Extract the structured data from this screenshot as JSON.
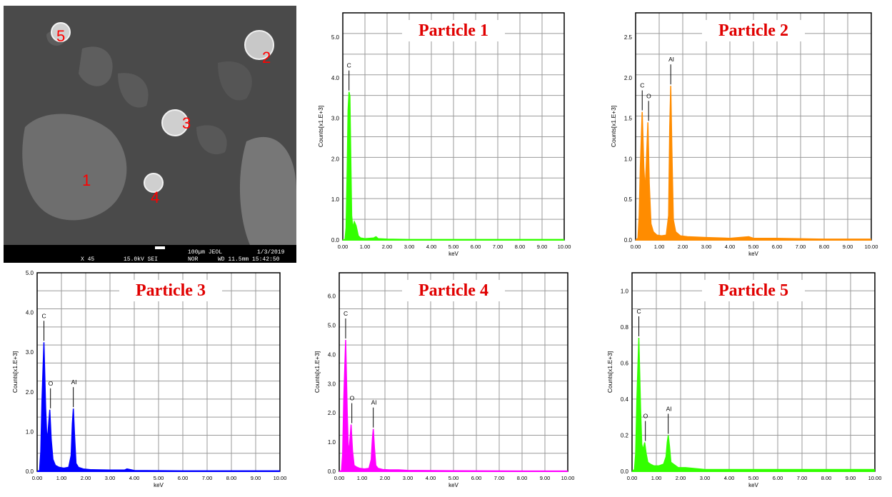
{
  "sem": {
    "particle_labels": [
      "1",
      "2",
      "3",
      "4",
      "5"
    ],
    "scalebar_text": "100µm JEOL",
    "date": "1/3/2019",
    "magnification": "X 45",
    "voltage": "15.0kV SEI",
    "mode": "NOR",
    "wd_time": "WD 11.5mm 15:42:50"
  },
  "chart_data": [
    {
      "type": "line",
      "title": "Particle 1",
      "xlabel": "keV",
      "ylabel": "Counts[x1.E+3]",
      "xlim": [
        0,
        10
      ],
      "ylim": [
        0,
        5.6
      ],
      "xticks": [
        "0.00",
        "1.00",
        "2.00",
        "3.00",
        "4.00",
        "5.00",
        "6.00",
        "7.00",
        "8.00",
        "9.00",
        "10.00"
      ],
      "yticks": [
        "0.0",
        "1.0",
        "2.0",
        "3.0",
        "4.0",
        "5.0"
      ],
      "color": "#33ff00",
      "peaks": [
        {
          "label": "C",
          "x": 0.28,
          "y": 3.65
        }
      ],
      "x": [
        0.0,
        0.1,
        0.15,
        0.2,
        0.24,
        0.28,
        0.32,
        0.36,
        0.4,
        0.45,
        0.52,
        0.6,
        0.7,
        0.8,
        1.0,
        1.4,
        1.5,
        1.6,
        2.0,
        3.0,
        5.0,
        7.0,
        10.0
      ],
      "y": [
        0.0,
        0.01,
        0.3,
        1.8,
        3.2,
        3.65,
        3.55,
        2.0,
        0.6,
        0.3,
        0.45,
        0.35,
        0.1,
        0.05,
        0.03,
        0.05,
        0.08,
        0.03,
        0.02,
        0.01,
        0.01,
        0.01,
        0.01
      ]
    },
    {
      "type": "line",
      "title": "Particle 2",
      "xlabel": "keV",
      "ylabel": "Counts[x1.E+3]",
      "xlim": [
        0,
        10
      ],
      "ylim": [
        0,
        2.8
      ],
      "xticks": [
        "0.00",
        "1.00",
        "2.00",
        "3.00",
        "4.00",
        "5.00",
        "6.00",
        "7.00",
        "8.00",
        "9.00",
        "10.00"
      ],
      "yticks": [
        "0.0",
        "0.5",
        "1.0",
        "1.5",
        "2.0",
        "2.5"
      ],
      "color": "#ff8c00",
      "peaks": [
        {
          "label": "C",
          "x": 0.28,
          "y": 1.58
        },
        {
          "label": "O",
          "x": 0.52,
          "y": 1.45
        },
        {
          "label": "Al",
          "x": 1.49,
          "y": 1.9
        }
      ],
      "x": [
        0.0,
        0.1,
        0.15,
        0.2,
        0.28,
        0.35,
        0.4,
        0.45,
        0.52,
        0.58,
        0.65,
        0.75,
        0.9,
        1.1,
        1.3,
        1.4,
        1.45,
        1.49,
        1.54,
        1.6,
        1.7,
        1.9,
        2.2,
        3.0,
        4.0,
        4.8,
        5.0,
        6.0,
        8.0,
        10.0
      ],
      "y": [
        0.0,
        0.02,
        0.3,
        0.9,
        1.58,
        0.9,
        0.6,
        0.9,
        1.45,
        0.7,
        0.2,
        0.1,
        0.06,
        0.05,
        0.06,
        0.3,
        1.4,
        1.9,
        1.1,
        0.25,
        0.1,
        0.05,
        0.04,
        0.03,
        0.02,
        0.04,
        0.02,
        0.02,
        0.01,
        0.01
      ]
    },
    {
      "type": "line",
      "title": "Particle 3",
      "xlabel": "keV",
      "ylabel": "Counts[x1.E+3]",
      "xlim": [
        0,
        10
      ],
      "ylim": [
        0,
        5.0
      ],
      "xticks": [
        "0.00",
        "1.00",
        "2.00",
        "3.00",
        "4.00",
        "5.00",
        "6.00",
        "7.00",
        "8.00",
        "9.00",
        "10.00"
      ],
      "yticks": [
        "0.0",
        "1.0",
        "2.0",
        "3.0",
        "4.0",
        "5.0"
      ],
      "color": "#0000ff",
      "peaks": [
        {
          "label": "C",
          "x": 0.28,
          "y": 3.25
        },
        {
          "label": "O",
          "x": 0.52,
          "y": 1.55
        },
        {
          "label": "Al",
          "x": 1.49,
          "y": 1.58
        }
      ],
      "x": [
        0.0,
        0.1,
        0.15,
        0.2,
        0.28,
        0.35,
        0.4,
        0.45,
        0.52,
        0.58,
        0.65,
        0.75,
        0.9,
        1.1,
        1.3,
        1.4,
        1.45,
        1.49,
        1.54,
        1.6,
        1.7,
        1.9,
        2.2,
        3.0,
        3.6,
        3.7,
        4.0,
        6.0,
        8.0,
        10.0
      ],
      "y": [
        0.0,
        0.02,
        0.5,
        1.8,
        3.25,
        1.6,
        0.8,
        1.0,
        1.55,
        0.8,
        0.3,
        0.15,
        0.1,
        0.08,
        0.1,
        0.4,
        1.2,
        1.58,
        0.9,
        0.2,
        0.1,
        0.06,
        0.04,
        0.03,
        0.03,
        0.06,
        0.02,
        0.01,
        0.01,
        0.01
      ]
    },
    {
      "type": "line",
      "title": "Particle 4",
      "xlabel": "keV",
      "ylabel": "Counts[x1.E+3]",
      "xlim": [
        0,
        10
      ],
      "ylim": [
        0,
        6.8
      ],
      "xticks": [
        "0.00",
        "1.00",
        "2.00",
        "3.00",
        "4.00",
        "5.00",
        "6.00",
        "7.00",
        "8.00",
        "9.00",
        "10.00"
      ],
      "yticks": [
        "0.0",
        "1.0",
        "2.0",
        "3.0",
        "4.0",
        "5.0",
        "6.0"
      ],
      "color": "#ff00ff",
      "peaks": [
        {
          "label": "C",
          "x": 0.28,
          "y": 4.5
        },
        {
          "label": "O",
          "x": 0.52,
          "y": 1.6
        },
        {
          "label": "Al",
          "x": 1.49,
          "y": 1.45
        }
      ],
      "x": [
        0.0,
        0.1,
        0.15,
        0.2,
        0.28,
        0.35,
        0.4,
        0.45,
        0.52,
        0.58,
        0.65,
        0.75,
        0.9,
        1.1,
        1.3,
        1.4,
        1.45,
        1.49,
        1.54,
        1.6,
        1.7,
        1.9,
        2.2,
        2.6,
        3.0,
        5.0,
        8.0,
        10.0
      ],
      "y": [
        0.0,
        0.02,
        0.6,
        2.5,
        4.5,
        2.0,
        0.7,
        0.9,
        1.6,
        0.7,
        0.2,
        0.15,
        0.1,
        0.08,
        0.1,
        0.4,
        1.1,
        1.45,
        0.8,
        0.2,
        0.1,
        0.06,
        0.05,
        0.05,
        0.03,
        0.02,
        0.01,
        0.01
      ]
    },
    {
      "type": "line",
      "title": "Particle 5",
      "xlabel": "keV",
      "ylabel": "Counts[x1.E+3]",
      "xlim": [
        0,
        10
      ],
      "ylim": [
        0,
        1.1
      ],
      "xticks": [
        "0.00",
        "1.00",
        "2.00",
        "3.00",
        "4.00",
        "5.00",
        "6.00",
        "7.00",
        "8.00",
        "9.00",
        "10.00"
      ],
      "yticks": [
        "0.0",
        "0.2",
        "0.4",
        "0.6",
        "0.8",
        "1.0"
      ],
      "color": "#33ff00",
      "peaks": [
        {
          "label": "C",
          "x": 0.28,
          "y": 0.74
        },
        {
          "label": "O",
          "x": 0.52,
          "y": 0.16
        },
        {
          "label": "Al",
          "x": 1.49,
          "y": 0.2
        }
      ],
      "x": [
        0.0,
        0.1,
        0.15,
        0.2,
        0.28,
        0.35,
        0.4,
        0.45,
        0.52,
        0.58,
        0.65,
        0.75,
        0.9,
        1.1,
        1.3,
        1.4,
        1.45,
        1.49,
        1.54,
        1.6,
        1.7,
        1.8,
        1.9,
        2.2,
        3.0,
        4.0,
        5.0,
        6.0,
        8.0,
        10.0
      ],
      "y": [
        0.0,
        0.01,
        0.1,
        0.4,
        0.74,
        0.35,
        0.15,
        0.12,
        0.16,
        0.1,
        0.05,
        0.04,
        0.03,
        0.03,
        0.04,
        0.08,
        0.16,
        0.2,
        0.14,
        0.05,
        0.04,
        0.03,
        0.02,
        0.02,
        0.01,
        0.01,
        0.01,
        0.01,
        0.01,
        0.01
      ]
    }
  ]
}
